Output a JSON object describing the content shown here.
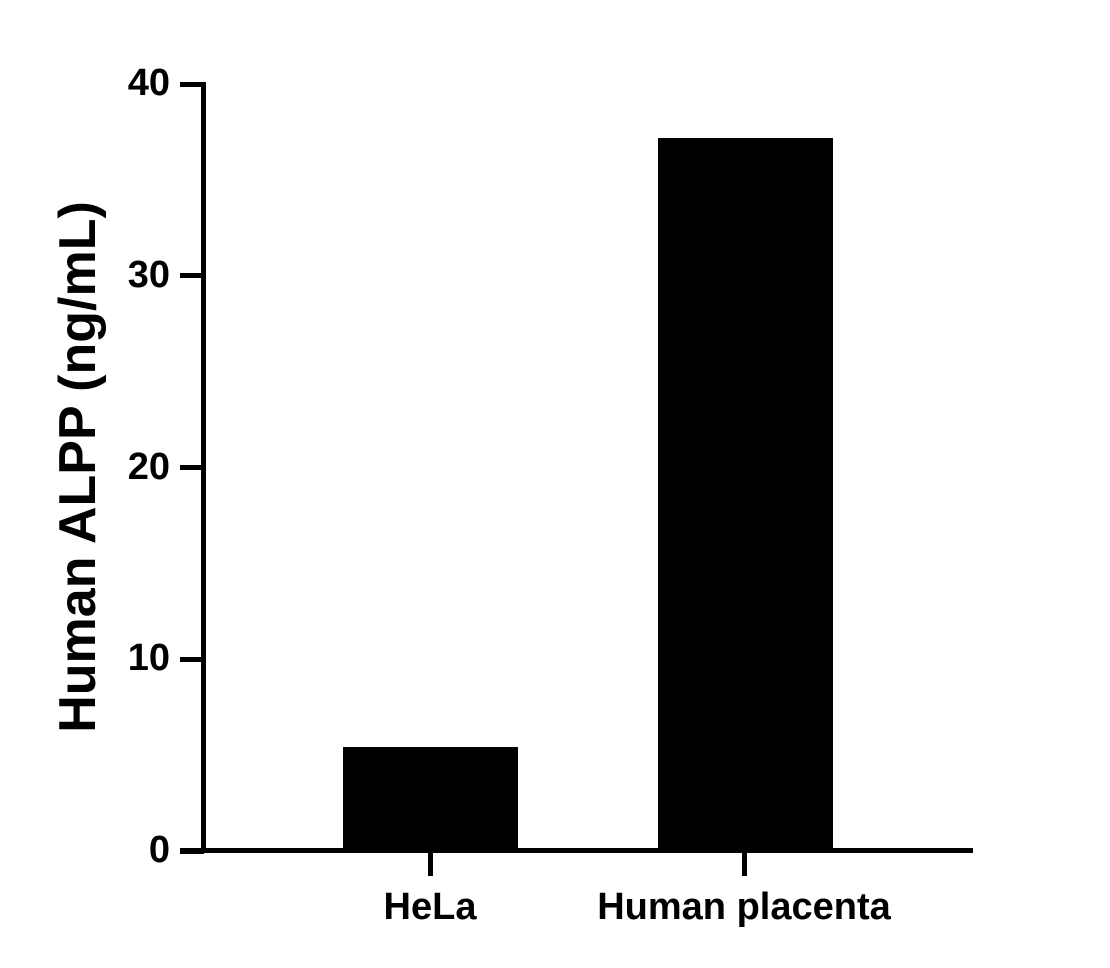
{
  "chart_data": {
    "type": "bar",
    "title": "",
    "xlabel": "",
    "ylabel": "Human ALPP (ng/mL)",
    "categories": [
      "HeLa",
      "Human placenta"
    ],
    "values": [
      5.4,
      37.2
    ],
    "ylim": [
      0,
      40
    ],
    "yticks": [
      0,
      10,
      20,
      30,
      40
    ],
    "ytick_labels": [
      "0",
      "10",
      "20",
      "30",
      "40"
    ],
    "grid": false,
    "legend": null,
    "bar_color": "#000000"
  }
}
